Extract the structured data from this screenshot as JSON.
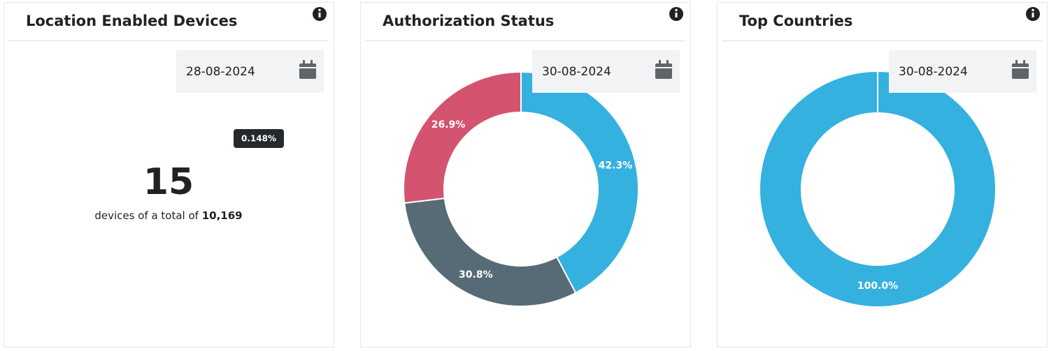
{
  "cards": [
    {
      "title": "Location Enabled Devices",
      "date": "28-08-2024",
      "badge": "0.148%",
      "count": 15,
      "caption": "devices of a total of",
      "total": "10,169"
    },
    {
      "title": "Authorization Status",
      "date": "30-08-2024",
      "chart_data": {
        "type": "donut",
        "values": [
          42.3,
          30.8,
          26.9
        ],
        "value_labels": [
          "42.3%",
          "30.8%",
          "26.9%"
        ],
        "colors": [
          "#35b1e0",
          "#566b76",
          "#d4536e"
        ]
      }
    },
    {
      "title": "Top Countries",
      "date": "30-08-2024",
      "chart_data": {
        "type": "donut",
        "values": [
          100
        ],
        "value_labels": [
          "100.0%"
        ],
        "colors": [
          "#35b1e0"
        ]
      }
    }
  ]
}
